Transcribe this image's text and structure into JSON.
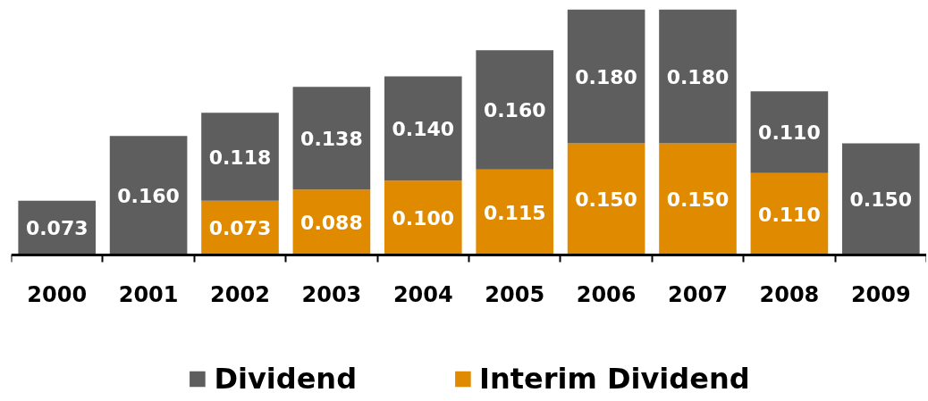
{
  "chart_data": {
    "type": "bar",
    "stacked": true,
    "legend": "bottom",
    "categories": [
      "2000",
      "2001",
      "2002",
      "2003",
      "2004",
      "2005",
      "2006",
      "2007",
      "2008",
      "2009"
    ],
    "series": [
      {
        "name": "Interim Dividend",
        "color": "#e08a00",
        "values": [
          null,
          null,
          0.073,
          0.088,
          0.1,
          0.115,
          0.15,
          0.15,
          0.11,
          null
        ],
        "value_labels": [
          null,
          null,
          "0.073",
          "0.088",
          "0.100",
          "0.115",
          "0.150",
          "0.150",
          "0.110",
          null
        ]
      },
      {
        "name": "Dividend",
        "color": "#5e5e5e",
        "values": [
          0.073,
          0.16,
          0.118,
          0.138,
          0.14,
          0.16,
          0.18,
          0.18,
          0.11,
          0.15
        ],
        "value_labels": [
          "0.073",
          "0.160",
          "0.118",
          "0.138",
          "0.140",
          "0.160",
          "0.180",
          "0.180",
          "0.110",
          "0.150"
        ]
      }
    ]
  }
}
